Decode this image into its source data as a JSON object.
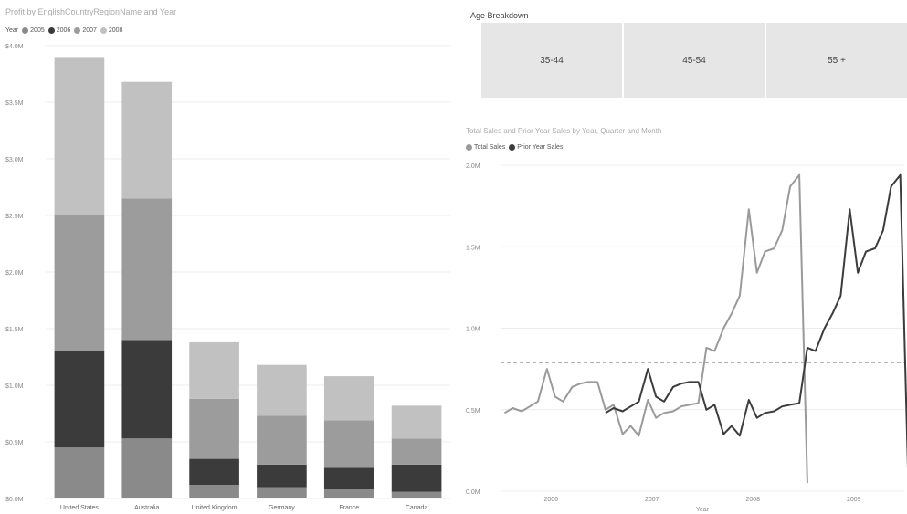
{
  "colors": {
    "y2005": "#8a8a8a",
    "y2006": "#3b3b3b",
    "y2007": "#9c9c9c",
    "y2008": "#c1c1c1",
    "total_sales": "#9a9a9a",
    "prior_year_sales": "#3c3c3c",
    "gridline": "#ececec",
    "card_bg": "#e6e6e6"
  },
  "left_chart": {
    "title": "Profit by EnglishCountryRegionName and Year",
    "legend_title": "Year",
    "legend": [
      "2005",
      "2006",
      "2007",
      "2008"
    ]
  },
  "age_breakdown": {
    "title": "Age Breakdown",
    "cards": [
      "35-44",
      "45-54",
      "55 +"
    ]
  },
  "right_chart": {
    "title": "Total Sales and Prior Year Sales by Year, Quarter and Month",
    "legend": [
      "Total Sales",
      "Prior Year Sales"
    ],
    "xlabel": "Year"
  },
  "chart_data": [
    {
      "type": "bar",
      "stacked": true,
      "title": "Profit by EnglishCountryRegionName and Year",
      "legend_title": "Year",
      "categories": [
        "United States",
        "Australia",
        "United Kingdom",
        "Germany",
        "France",
        "Canada"
      ],
      "series": [
        {
          "name": "2005",
          "values": [
            0.45,
            0.53,
            0.12,
            0.1,
            0.08,
            0.06
          ]
        },
        {
          "name": "2006",
          "values": [
            0.85,
            0.87,
            0.23,
            0.2,
            0.19,
            0.24
          ]
        },
        {
          "name": "2007",
          "values": [
            1.2,
            1.25,
            0.53,
            0.43,
            0.42,
            0.23
          ]
        },
        {
          "name": "2008",
          "values": [
            1.4,
            1.03,
            0.5,
            0.45,
            0.39,
            0.29
          ]
        }
      ],
      "ylim": [
        0,
        4.0
      ],
      "yticks": [
        0,
        0.5,
        1.0,
        1.5,
        2.0,
        2.5,
        3.0,
        3.5,
        4.0
      ],
      "ytick_labels": [
        "$0.0M",
        "$0.5M",
        "$1.0M",
        "$1.5M",
        "$2.0M",
        "$2.5M",
        "$3.0M",
        "$3.5M",
        "$4.0M"
      ],
      "grid": true,
      "legend_position": "top-left"
    },
    {
      "type": "line",
      "title": "Total Sales and Prior Year Sales by Year, Quarter and Month",
      "xlabel": "Year",
      "ylim": [
        0,
        2.0
      ],
      "xlim": [
        2005.5,
        2009.5
      ],
      "yticks": [
        0,
        0.5,
        1.0,
        1.5,
        2.0
      ],
      "ytick_labels": [
        "0.0M",
        "0.5M",
        "1.0M",
        "1.5M",
        "2.0M"
      ],
      "xticks": [
        2006,
        2007,
        2008,
        2009
      ],
      "xtick_labels": [
        "2006",
        "2007",
        "2008",
        "2009"
      ],
      "reference_line": 0.79,
      "grid": true,
      "legend_position": "top-left",
      "series": [
        {
          "name": "Total Sales",
          "x": [
            2005.54,
            2005.62,
            2005.71,
            2005.79,
            2005.87,
            2005.96,
            2006.04,
            2006.12,
            2006.21,
            2006.29,
            2006.37,
            2006.46,
            2006.54,
            2006.62,
            2006.71,
            2006.79,
            2006.87,
            2006.96,
            2007.04,
            2007.12,
            2007.21,
            2007.29,
            2007.37,
            2007.46,
            2007.54,
            2007.62,
            2007.71,
            2007.79,
            2007.87,
            2007.96,
            2008.04,
            2008.12,
            2008.21,
            2008.29,
            2008.37,
            2008.46,
            2008.54
          ],
          "values": [
            0.48,
            0.51,
            0.49,
            0.52,
            0.55,
            0.75,
            0.58,
            0.55,
            0.64,
            0.66,
            0.67,
            0.67,
            0.5,
            0.53,
            0.35,
            0.4,
            0.34,
            0.56,
            0.45,
            0.48,
            0.49,
            0.52,
            0.53,
            0.54,
            0.88,
            0.86,
            1.0,
            1.09,
            1.2,
            1.73,
            1.34,
            1.47,
            1.49,
            1.6,
            1.87,
            1.94,
            0.05
          ]
        },
        {
          "name": "Prior Year Sales",
          "x": [
            2006.54,
            2006.62,
            2006.71,
            2006.79,
            2006.87,
            2006.96,
            2007.04,
            2007.12,
            2007.21,
            2007.29,
            2007.37,
            2007.46,
            2007.54,
            2007.62,
            2007.71,
            2007.79,
            2007.87,
            2007.96,
            2008.04,
            2008.12,
            2008.21,
            2008.29,
            2008.37,
            2008.46,
            2008.54,
            2008.62,
            2008.71,
            2008.79,
            2008.87,
            2008.96,
            2009.04,
            2009.12,
            2009.21,
            2009.29,
            2009.37,
            2009.46,
            2009.54
          ],
          "values": [
            0.48,
            0.51,
            0.49,
            0.52,
            0.55,
            0.75,
            0.58,
            0.55,
            0.64,
            0.66,
            0.67,
            0.67,
            0.5,
            0.53,
            0.35,
            0.4,
            0.34,
            0.56,
            0.45,
            0.48,
            0.49,
            0.52,
            0.53,
            0.54,
            0.88,
            0.86,
            1.0,
            1.09,
            1.2,
            1.73,
            1.34,
            1.47,
            1.49,
            1.6,
            1.87,
            1.94,
            0.05
          ]
        }
      ]
    }
  ]
}
